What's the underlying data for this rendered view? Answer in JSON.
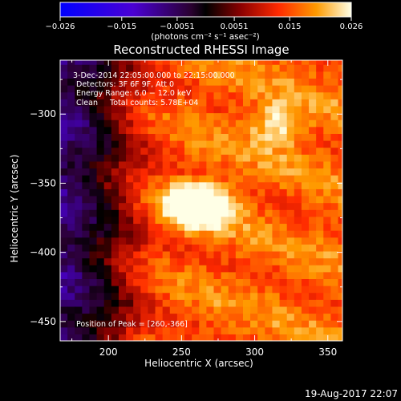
{
  "chart_data": {
    "type": "heatmap",
    "title": "Reconstructed RHESSI Image",
    "xlabel": "Heliocentric X (arcsec)",
    "ylabel": "Heliocentric Y (arcsec)",
    "xlim": [
      167,
      360
    ],
    "ylim": [
      -464,
      -261
    ],
    "x_ticks": [
      200,
      250,
      300,
      350
    ],
    "y_ticks": [
      -300,
      -350,
      -400,
      -450
    ],
    "colorbar": {
      "min": -0.026,
      "max": 0.026,
      "tick_values": [
        -0.026,
        -0.015,
        -0.0051,
        0.0051,
        0.015,
        0.026
      ],
      "tick_labels": [
        "−0.026",
        "−0.015",
        "−0.0051",
        "0.0051",
        "0.015",
        "0.026"
      ],
      "unit_label": "(photons cm⁻² s⁻¹ asec⁻²)"
    },
    "annotations": [
      "3-Dec-2014 22:05:00.000 to 22:15:00.000",
      "Detectors: 3F 6F 9F, Att 0",
      "Energy Range: 6.0 − 12.0 keV",
      "Clean     Total counts: 5.78E+04"
    ],
    "peak_text": "Position of Peak = [260,-366]",
    "peak": {
      "x": 260,
      "y": -366,
      "value": 0.026
    },
    "sources": [
      {
        "x": 260,
        "y": -366,
        "value": 0.026
      },
      {
        "x": 316,
        "y": -307,
        "value": 0.012
      }
    ]
  },
  "footer": {
    "timestamp": "19-Aug-2017 22:07"
  }
}
